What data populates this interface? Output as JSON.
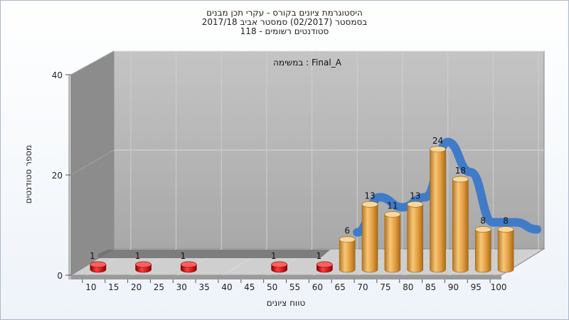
{
  "title": {
    "line1": "היסטוגרמת ציונים בקורס - עקרי תכן מבנים",
    "line2": "בסמסטר  (02/2017)  סמסטר אביב 2017/18",
    "line3": "סטודנטים רשומים - 118"
  },
  "colors": {
    "bar_low": "#d01010",
    "bar_high": "#e6a040",
    "curve": "#3a78c9",
    "back_wall": "#b4b4b4",
    "side_wall": "#8a8a8a",
    "floor": "#c8c8c8"
  },
  "chart_data": {
    "type": "bar",
    "annotation": "במשימה : Final_A",
    "xlabel": "טווח ציונים",
    "ylabel": "מספר סטודנטים",
    "ylim": [
      0,
      40
    ],
    "yticks": [
      0,
      20,
      40
    ],
    "x_ticks": [
      "10",
      "15",
      "20",
      "25",
      "30",
      "35",
      "40",
      "45",
      "50",
      "55",
      "60",
      "65",
      "70",
      "75",
      "80",
      "85",
      "90",
      "95",
      "100"
    ],
    "series": [
      {
        "values": [
          {
            "range": "10-15",
            "count": 1
          },
          {
            "range": "20-25",
            "count": 1
          },
          {
            "range": "30-35",
            "count": 1
          },
          {
            "range": "50-55",
            "count": 1
          },
          {
            "range": "60-65",
            "count": 1
          },
          {
            "range": "65-70",
            "count": 6
          },
          {
            "range": "70-75",
            "count": 13
          },
          {
            "range": "75-80",
            "count": 11
          },
          {
            "range": "80-85",
            "count": 13
          },
          {
            "range": "85-90",
            "count": 24
          },
          {
            "range": "90-95",
            "count": 18
          },
          {
            "range": "95-100",
            "count": 8
          },
          {
            "range": "100",
            "count": 8
          }
        ]
      }
    ],
    "distribution_curve": true,
    "grid": true,
    "view": "3d"
  }
}
